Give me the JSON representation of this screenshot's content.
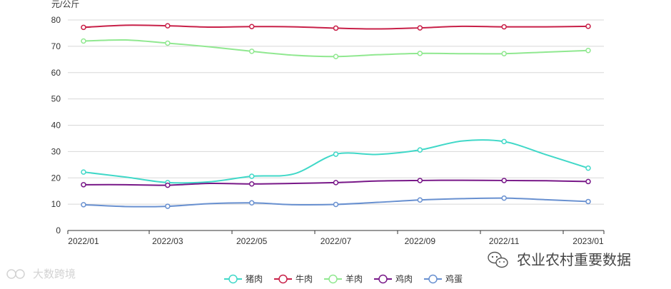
{
  "chart_data": {
    "type": "line",
    "ylabel": "元/公斤",
    "ylim": [
      0,
      80
    ],
    "yticks": [
      0,
      10,
      20,
      30,
      40,
      50,
      60,
      70,
      80
    ],
    "grid": true,
    "legend_position": "bottom-center",
    "x": [
      "2022/01",
      "2022/02",
      "2022/03",
      "2022/04",
      "2022/05",
      "2022/06",
      "2022/07",
      "2022/08",
      "2022/09",
      "2022/10",
      "2022/11",
      "2022/12",
      "2023/01"
    ],
    "xtick_labels": [
      "2022/01",
      "2022/03",
      "2022/05",
      "2022/07",
      "2022/09",
      "2022/11",
      "2023/01"
    ],
    "series": [
      {
        "name": "猪肉",
        "color": "#40d8c8",
        "values": [
          22.2,
          20.3,
          18.2,
          18.5,
          20.6,
          21.5,
          29.0,
          28.9,
          30.6,
          34.0,
          33.8,
          28.8,
          23.7
        ]
      },
      {
        "name": "牛肉",
        "color": "#c82048",
        "values": [
          77.2,
          78.0,
          77.8,
          77.3,
          77.5,
          77.4,
          76.9,
          76.6,
          77.0,
          77.6,
          77.4,
          77.4,
          77.6
        ]
      },
      {
        "name": "羊肉",
        "color": "#90e890",
        "values": [
          72.0,
          72.4,
          71.2,
          69.8,
          68.1,
          66.6,
          66.1,
          66.8,
          67.3,
          67.2,
          67.2,
          67.8,
          68.4
        ]
      },
      {
        "name": "鸡肉",
        "color": "#781888",
        "values": [
          17.4,
          17.4,
          17.2,
          17.9,
          17.7,
          17.9,
          18.2,
          18.8,
          19.0,
          19.1,
          19.0,
          18.9,
          18.6
        ]
      },
      {
        "name": "鸡蛋",
        "color": "#6890d0",
        "values": [
          9.8,
          9.1,
          9.2,
          10.2,
          10.5,
          9.8,
          9.9,
          10.7,
          11.6,
          12.1,
          12.3,
          11.7,
          11.0
        ]
      }
    ],
    "marker_indices": [
      0,
      2,
      4,
      6,
      8,
      10,
      12
    ]
  },
  "watermarks": {
    "right": "农业农村重要数据",
    "left": "大数跨境"
  }
}
